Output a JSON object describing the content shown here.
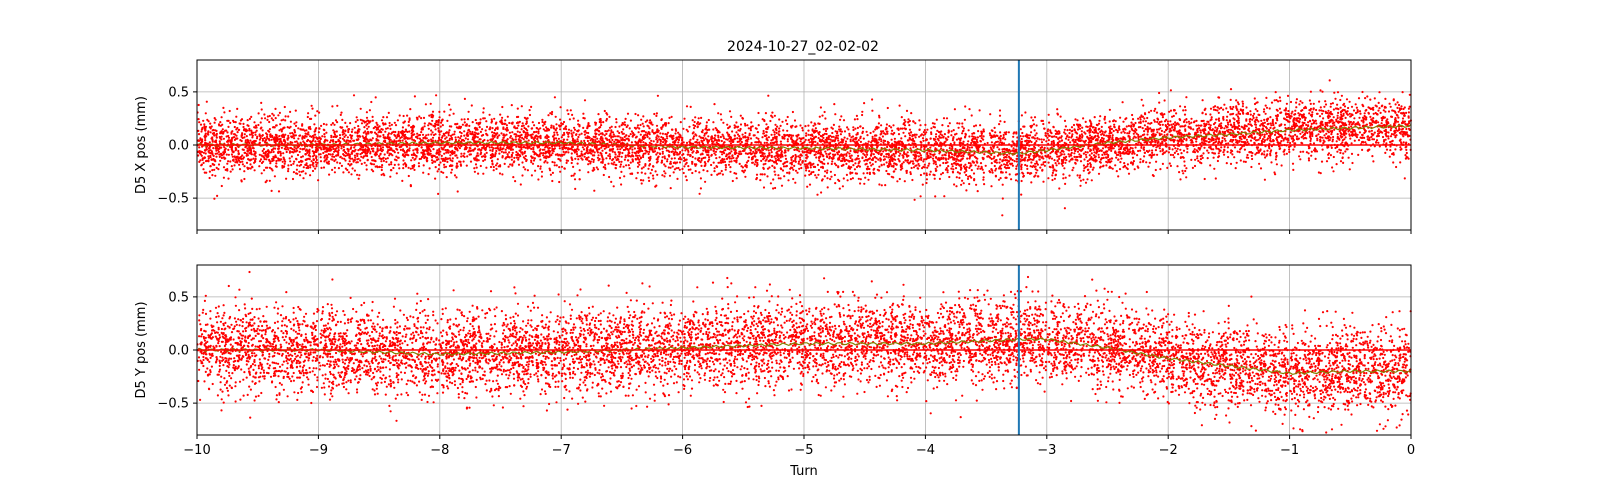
{
  "figure": {
    "title": "2024-10-27_02-02-02"
  },
  "chart_data": [
    {
      "type": "scatter",
      "title": "2024-10-27_02-02-02",
      "xlabel": "",
      "ylabel": "D5 X pos (mm)",
      "xlim": [
        -10,
        0
      ],
      "ylim": [
        -0.8,
        0.8
      ],
      "xticks": [
        -10,
        -9,
        -8,
        -7,
        -6,
        -5,
        -4,
        -3,
        -2,
        -1,
        0
      ],
      "yticks": [
        -0.5,
        0.0,
        0.5
      ],
      "ytick_labels": [
        "−0.5",
        "0.0",
        "0.5"
      ],
      "grid": true,
      "marker_color": "#ff0000",
      "reference_line": {
        "y": 0,
        "color": "#ff0000"
      },
      "vertical_line": {
        "x": -3.23,
        "color": "#1f77b4"
      },
      "trend_color": "#808000",
      "trend": {
        "x": [
          -10,
          -9,
          -8,
          -7,
          -6,
          -5,
          -4,
          -3.5,
          -3.23,
          -3,
          -2.5,
          -2,
          -1.5,
          -1,
          -0.5,
          0
        ],
        "y": [
          0.0,
          0.0,
          0.02,
          0.02,
          -0.02,
          -0.03,
          -0.05,
          -0.07,
          -0.08,
          -0.05,
          0.02,
          0.07,
          0.1,
          0.14,
          0.16,
          0.18
        ]
      },
      "scatter_spread": 0.14
    },
    {
      "type": "scatter",
      "title": "",
      "xlabel": "Turn",
      "ylabel": "D5 Y pos (mm)",
      "xlim": [
        -10,
        0
      ],
      "ylim": [
        -0.8,
        0.8
      ],
      "xticks": [
        -10,
        -9,
        -8,
        -7,
        -6,
        -5,
        -4,
        -3,
        -2,
        -1,
        0
      ],
      "xtick_labels": [
        "−10",
        "−9",
        "−8",
        "−7",
        "−6",
        "−5",
        "−4",
        "−3",
        "−2",
        "−1",
        "0"
      ],
      "yticks": [
        -0.5,
        0.0,
        0.5
      ],
      "ytick_labels": [
        "−0.5",
        "0.0",
        "0.5"
      ],
      "grid": true,
      "marker_color": "#ff0000",
      "reference_line": {
        "y": 0,
        "color": "#ff0000"
      },
      "vertical_line": {
        "x": -3.23,
        "color": "#1f77b4"
      },
      "trend_color": "#808000",
      "trend": {
        "x": [
          -10,
          -9,
          -8,
          -7,
          -6,
          -5,
          -4,
          -3.23,
          -3,
          -2.5,
          -2,
          -1.5,
          -1,
          -0.5,
          0
        ],
        "y": [
          0.0,
          0.0,
          -0.04,
          -0.02,
          0.02,
          0.06,
          0.06,
          0.1,
          0.1,
          0.02,
          -0.08,
          -0.15,
          -0.22,
          -0.2,
          -0.2
        ]
      },
      "scatter_spread": 0.2
    }
  ]
}
